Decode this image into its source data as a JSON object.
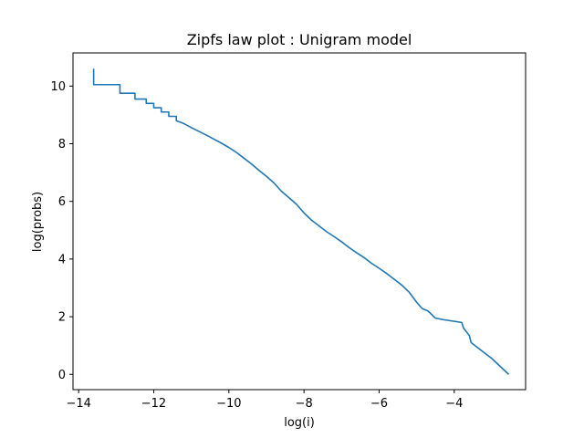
{
  "chart_data": {
    "type": "line",
    "title": "Zipfs law plot : Unigram model",
    "xlabel": "log(i)",
    "ylabel": "log(probs)",
    "xlim": [
      -14.15,
      -2.1
    ],
    "ylim": [
      -0.53,
      11.15
    ],
    "xticks": [
      -14,
      -12,
      -10,
      -8,
      -6,
      -4
    ],
    "xtick_labels": [
      "−14",
      "−12",
      "−10",
      "−8",
      "−6",
      "−4"
    ],
    "yticks": [
      0,
      2,
      4,
      6,
      8,
      10
    ],
    "ytick_labels": [
      "0",
      "2",
      "4",
      "6",
      "8",
      "10"
    ],
    "grid": false,
    "legend": "none",
    "series": [
      {
        "color": "#1f77b4",
        "x": [
          -13.6,
          -13.6,
          -12.9,
          -12.9,
          -12.5,
          -12.5,
          -12.2,
          -12.2,
          -12.0,
          -12.0,
          -11.8,
          -11.8,
          -11.6,
          -11.6,
          -11.4,
          -11.4,
          -11.2,
          -11.0,
          -10.8,
          -10.6,
          -10.4,
          -10.2,
          -10.0,
          -9.8,
          -9.6,
          -9.4,
          -9.2,
          -9.0,
          -8.8,
          -8.6,
          -8.4,
          -8.2,
          -8.0,
          -7.8,
          -7.6,
          -7.4,
          -7.2,
          -7.0,
          -6.8,
          -6.6,
          -6.4,
          -6.2,
          -6.0,
          -5.8,
          -5.6,
          -5.4,
          -5.2,
          -5.0,
          -4.9,
          -4.85,
          -4.7,
          -4.5,
          -4.3,
          -3.8,
          -3.75,
          -3.6,
          -3.55,
          -3.0,
          -2.55
        ],
        "y": [
          10.6,
          10.05,
          10.05,
          9.75,
          9.75,
          9.55,
          9.55,
          9.4,
          9.4,
          9.25,
          9.25,
          9.1,
          9.1,
          8.95,
          8.95,
          8.8,
          8.7,
          8.56,
          8.43,
          8.3,
          8.16,
          8.02,
          7.87,
          7.7,
          7.5,
          7.3,
          7.08,
          6.87,
          6.64,
          6.35,
          6.13,
          5.9,
          5.6,
          5.35,
          5.15,
          4.95,
          4.78,
          4.6,
          4.4,
          4.22,
          4.05,
          3.85,
          3.68,
          3.5,
          3.3,
          3.1,
          2.85,
          2.5,
          2.35,
          2.28,
          2.2,
          1.95,
          1.9,
          1.8,
          1.6,
          1.35,
          1.1,
          0.55,
          0.0
        ]
      }
    ]
  }
}
